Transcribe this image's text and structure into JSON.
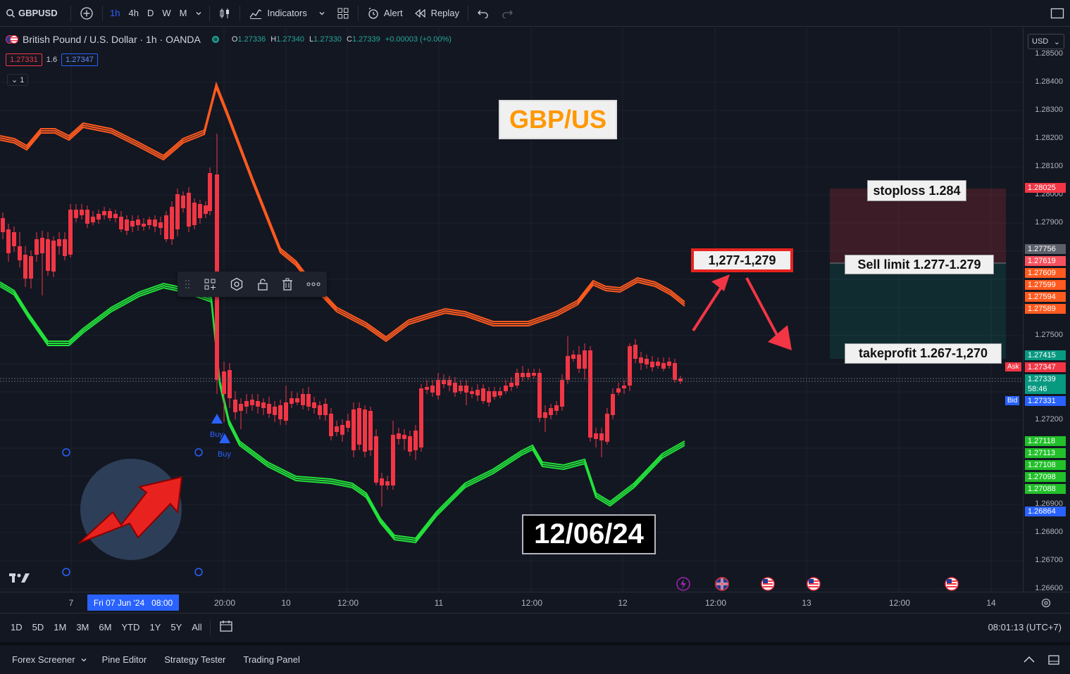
{
  "toolbar": {
    "symbol": "GBPUSD",
    "intervals": [
      "1h",
      "4h",
      "D",
      "W",
      "M"
    ],
    "indicators_label": "Indicators",
    "alert_label": "Alert",
    "replay_label": "Replay"
  },
  "legend": {
    "title": "British Pound / U.S. Dollar · 1h · OANDA",
    "o_label": "O",
    "o": "1.27336",
    "h_label": "H",
    "h": "1.27340",
    "l_label": "L",
    "l": "1.27330",
    "c_label": "C",
    "c": "1.27339",
    "change": "+0.00003 (+0.00%)",
    "sell_price": "1.27331",
    "spread": "1.6",
    "buy_price": "1.27347",
    "collapse": "1"
  },
  "currency": "USD",
  "price_axis": {
    "labels": [
      "1.28500",
      "1.28400",
      "1.28300",
      "1.28200",
      "1.28100",
      "1.28000",
      "1.27900",
      "1.27500",
      "1.27200",
      "1.26900",
      "1.26800",
      "1.26700",
      "1.26600"
    ],
    "tags": [
      {
        "text": "1.28025",
        "color": "#f23645"
      },
      {
        "text": "1.27756",
        "color": "#5d606b"
      },
      {
        "text": "1.27619",
        "color": "#f7525f"
      },
      {
        "text": "1.27609",
        "color": "#ff5a1f"
      },
      {
        "text": "1.27599",
        "color": "#ff5a1f"
      },
      {
        "text": "1.27594",
        "color": "#ff5a1f"
      },
      {
        "text": "1.27589",
        "color": "#ff5a1f"
      },
      {
        "text": "1.27415",
        "color": "#089981"
      },
      {
        "text": "1.27347",
        "color": "#f23645"
      },
      {
        "text": "1.27339",
        "color": "#089981"
      },
      {
        "text": "58:46",
        "color": "#089981"
      },
      {
        "text": "1.27331",
        "color": "#2962ff"
      },
      {
        "text": "1.27118",
        "color": "#22c02a"
      },
      {
        "text": "1.27113",
        "color": "#22c02a"
      },
      {
        "text": "1.27108",
        "color": "#22c02a"
      },
      {
        "text": "1.27098",
        "color": "#22c02a"
      },
      {
        "text": "1.27088",
        "color": "#22c02a"
      },
      {
        "text": "1.26864",
        "color": "#2962ff"
      }
    ],
    "ask_label": "Ask",
    "bid_label": "Bid"
  },
  "time_axis": {
    "labels": [
      "7",
      "20:00",
      "10",
      "12:00",
      "11",
      "12:00",
      "12",
      "12:00",
      "13",
      "12:00",
      "14"
    ],
    "cursor_label": "Fri 07 Jun '24   08:00"
  },
  "annotations": {
    "pair": "GBP/US",
    "date": "12/06/24",
    "entry_zone": "1,277-1,279",
    "stoploss": "stoploss 1.284",
    "sell_limit": "Sell limit 1.277-1.279",
    "takeprofit": "takeprofit 1.267-1,270",
    "buy_label": "Buy"
  },
  "range_bar": {
    "ranges": [
      "1D",
      "5D",
      "1M",
      "3M",
      "6M",
      "YTD",
      "1Y",
      "5Y",
      "All"
    ],
    "clock": "08:01:13 (UTC+7)"
  },
  "bottom_panel": {
    "tabs": [
      "Forex Screener",
      "Pine Editor",
      "Strategy Tester",
      "Trading Panel"
    ]
  },
  "colors": {
    "background": "#131722",
    "up": "#089981",
    "down": "#f23645",
    "upper_band": "#ff5a1f",
    "lower_band": "#22e23a",
    "accent": "#2962ff",
    "annotation_orange": "#ff9800"
  }
}
